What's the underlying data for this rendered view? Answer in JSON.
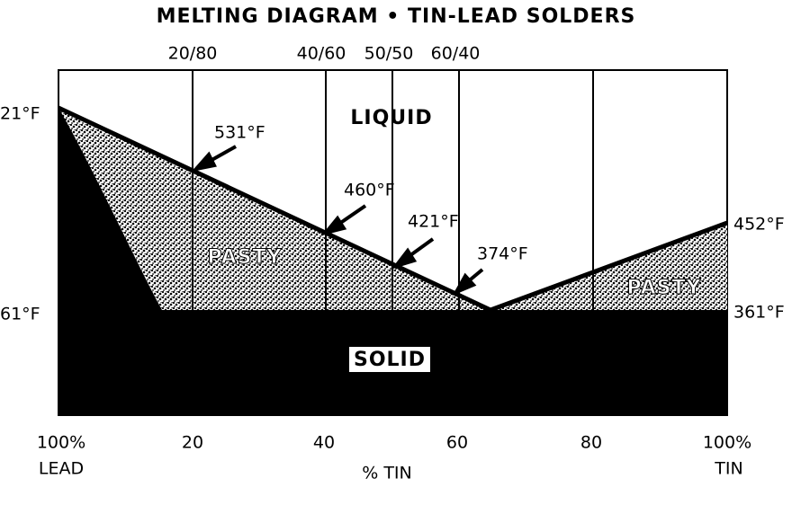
{
  "title": "MELTING DIAGRAM • TIN-LEAD SOLDERS",
  "top_labels": [
    "20/80",
    "40/60",
    "50/50",
    "60/40"
  ],
  "x_labels": [
    "100%",
    "20",
    "40",
    "60",
    "80",
    "100%"
  ],
  "x_end_labels": [
    "LEAD",
    "TIN"
  ],
  "x_title": "% TIN",
  "left_labels": [
    "21°F",
    "61°F"
  ],
  "right_labels": [
    "452°F",
    "361°F"
  ],
  "regions": [
    "LIQUID",
    "PASTY",
    "PASTY",
    "SOLID"
  ],
  "callouts": [
    "531°F",
    "460°F",
    "421°F",
    "374°F"
  ]
}
